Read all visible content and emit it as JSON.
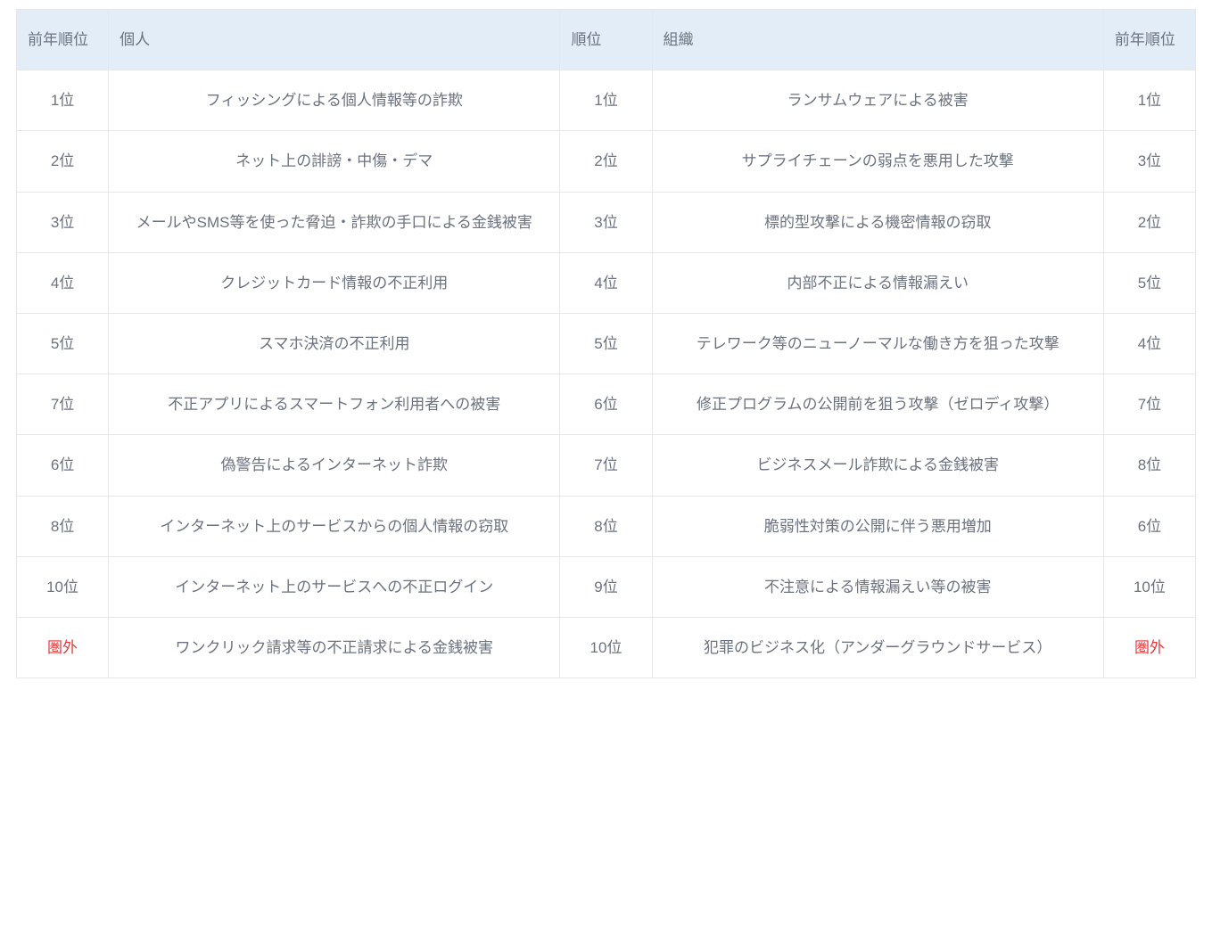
{
  "table": {
    "type": "table",
    "colors": {
      "header_bg": "#e2edf7",
      "border": "#e5e7eb",
      "text": "#6b7280",
      "out_text": "#e33b3b",
      "background": "#ffffff"
    },
    "typography": {
      "font_size_pt": 13,
      "line_height": 1.6,
      "font_weight_header": 400
    },
    "columns": [
      {
        "key": "prev_individual",
        "label": "前年順位",
        "width_pct": 7.8,
        "align": "left"
      },
      {
        "key": "individual",
        "label": "個人",
        "width_pct": 38.3,
        "align": "left"
      },
      {
        "key": "rank",
        "label": "順位",
        "width_pct": 7.8,
        "align": "left"
      },
      {
        "key": "organization",
        "label": "組織",
        "width_pct": 38.3,
        "align": "left"
      },
      {
        "key": "prev_org",
        "label": "前年順位",
        "width_pct": 7.8,
        "align": "left"
      }
    ],
    "out_marker": "圏外",
    "rows": [
      {
        "prev_individual": "1位",
        "individual": "フィッシングによる個人情報等の詐欺",
        "rank": "1位",
        "organization": "ランサムウェアによる被害",
        "prev_org": "1位"
      },
      {
        "prev_individual": "2位",
        "individual": "ネット上の誹謗・中傷・デマ",
        "rank": "2位",
        "organization": "サプライチェーンの弱点を悪用した攻撃",
        "prev_org": "3位"
      },
      {
        "prev_individual": "3位",
        "individual": "メールやSMS等を使った脅迫・詐欺の手口による金銭被害",
        "rank": "3位",
        "organization": "標的型攻撃による機密情報の窃取",
        "prev_org": "2位"
      },
      {
        "prev_individual": "4位",
        "individual": "クレジットカード情報の不正利用",
        "rank": "4位",
        "organization": "内部不正による情報漏えい",
        "prev_org": "5位"
      },
      {
        "prev_individual": "5位",
        "individual": "スマホ決済の不正利用",
        "rank": "5位",
        "organization": "テレワーク等のニューノーマルな働き方を狙った攻撃",
        "prev_org": "4位"
      },
      {
        "prev_individual": "7位",
        "individual": "不正アプリによるスマートフォン利用者への被害",
        "rank": "6位",
        "organization": "修正プログラムの公開前を狙う攻撃（ゼロディ攻撃）",
        "prev_org": "7位"
      },
      {
        "prev_individual": "6位",
        "individual": "偽警告によるインターネット詐欺",
        "rank": "7位",
        "organization": "ビジネスメール詐欺による金銭被害",
        "prev_org": "8位"
      },
      {
        "prev_individual": "8位",
        "individual": "インターネット上のサービスからの個人情報の窃取",
        "rank": "8位",
        "organization": "脆弱性対策の公開に伴う悪用増加",
        "prev_org": "6位"
      },
      {
        "prev_individual": "10位",
        "individual": "インターネット上のサービスへの不正ログイン",
        "rank": "9位",
        "organization": "不注意による情報漏えい等の被害",
        "prev_org": "10位"
      },
      {
        "prev_individual": "圏外",
        "individual": "ワンクリック請求等の不正請求による金銭被害",
        "rank": "10位",
        "organization": "犯罪のビジネス化（アンダーグラウンドサービス）",
        "prev_org": "圏外"
      }
    ]
  }
}
